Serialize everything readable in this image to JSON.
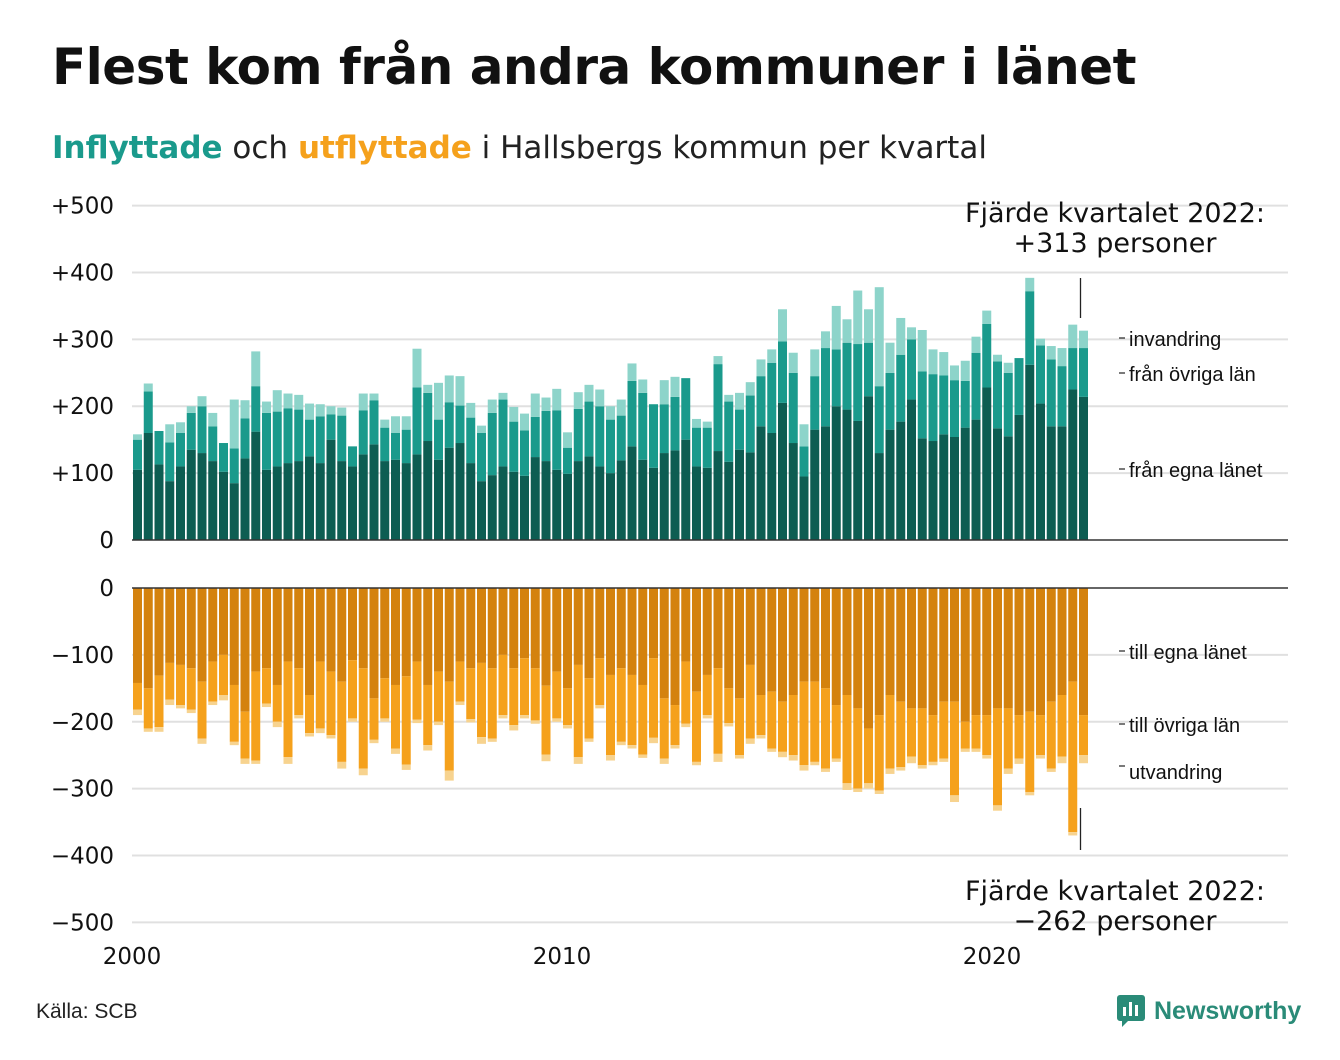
{
  "header": {
    "title": "Flest kom från andra kommuner i länet",
    "subtitle_in": "Inflyttade",
    "subtitle_mid": " och ",
    "subtitle_out": "utflyttade",
    "subtitle_rest": " i Hallsbergs kommun per kvartal"
  },
  "footer": {
    "source": "Källa: SCB",
    "brand": "Newsworthy"
  },
  "colors": {
    "in_own": "#0d5d52",
    "in_other": "#1a9a8c",
    "in_immigration": "#8dd4ca",
    "out_own": "#d4820e",
    "out_other": "#f5a11c",
    "out_emigration": "#f7d38f",
    "grid": "#e0e0e0",
    "axis": "#333333"
  },
  "chart_data": {
    "type": "bar",
    "stacked": true,
    "start_year": 2000,
    "period": "quarter",
    "x_ticks": [
      "2000",
      "2010",
      "2020"
    ],
    "upper": {
      "ylim": [
        0,
        500
      ],
      "y_ticks": [
        "0",
        "+100",
        "+200",
        "+300",
        "+400",
        "+500"
      ],
      "series": [
        {
          "name": "från egna länet",
          "values": [
            105,
            160,
            113,
            88,
            110,
            135,
            130,
            118,
            102,
            85,
            122,
            162,
            105,
            110,
            115,
            118,
            125,
            115,
            150,
            118,
            110,
            128,
            143,
            118,
            120,
            115,
            128,
            148,
            120,
            138,
            145,
            115,
            88,
            97,
            110,
            102,
            96,
            124,
            118,
            105,
            99,
            118,
            125,
            110,
            100,
            119,
            140,
            120,
            108,
            130,
            134,
            150,
            110,
            108,
            133,
            117,
            135,
            131,
            170,
            160,
            205,
            145,
            95,
            165,
            170,
            200,
            195,
            178,
            215,
            130,
            165,
            177,
            210,
            152,
            148,
            158,
            154,
            168,
            180,
            228,
            167,
            155,
            187,
            262,
            204,
            170,
            170,
            225,
            214
          ]
        },
        {
          "name": "från övriga län",
          "values": [
            45,
            62,
            50,
            58,
            50,
            55,
            70,
            52,
            43,
            52,
            60,
            68,
            85,
            82,
            82,
            77,
            55,
            70,
            38,
            68,
            30,
            66,
            66,
            50,
            40,
            50,
            100,
            72,
            60,
            68,
            56,
            68,
            72,
            93,
            100,
            75,
            68,
            60,
            75,
            89,
            39,
            78,
            82,
            90,
            80,
            67,
            98,
            100,
            95,
            73,
            80,
            92,
            58,
            60,
            130,
            90,
            60,
            85,
            75,
            105,
            92,
            105,
            45,
            80,
            117,
            85,
            100,
            115,
            80,
            100,
            85,
            100,
            90,
            100,
            100,
            88,
            85,
            70,
            100,
            95,
            100,
            95,
            85,
            110,
            87,
            100,
            90,
            62,
            73
          ]
        },
        {
          "name": "invandring",
          "values": [
            8,
            12,
            0,
            27,
            16,
            10,
            15,
            20,
            0,
            73,
            27,
            52,
            17,
            32,
            22,
            22,
            24,
            18,
            12,
            12,
            0,
            25,
            10,
            12,
            25,
            20,
            58,
            12,
            55,
            40,
            44,
            22,
            11,
            20,
            10,
            22,
            25,
            35,
            20,
            32,
            23,
            25,
            25,
            25,
            20,
            24,
            26,
            20,
            0,
            36,
            30,
            0,
            13,
            9,
            12,
            10,
            25,
            20,
            25,
            20,
            48,
            30,
            33,
            40,
            25,
            65,
            35,
            80,
            50,
            148,
            45,
            55,
            18,
            62,
            37,
            35,
            22,
            30,
            24,
            20,
            10,
            15,
            0,
            20,
            10,
            20,
            27,
            35,
            26
          ]
        }
      ]
    },
    "lower": {
      "ylim": [
        -500,
        0
      ],
      "y_ticks": [
        "0",
        "−100",
        "−200",
        "−300",
        "−400",
        "−500"
      ],
      "series": [
        {
          "name": "till egna länet",
          "values": [
            -142,
            -150,
            -131,
            -112,
            -115,
            -120,
            -140,
            -110,
            -100,
            -145,
            -185,
            -125,
            -120,
            -145,
            -110,
            -120,
            -160,
            -110,
            -125,
            -140,
            -108,
            -120,
            -165,
            -135,
            -145,
            -132,
            -110,
            -145,
            -125,
            -140,
            -110,
            -120,
            -112,
            -120,
            -100,
            -120,
            -105,
            -120,
            -146,
            -125,
            -150,
            -115,
            -135,
            -105,
            -130,
            -120,
            -130,
            -145,
            -105,
            -165,
            -175,
            -110,
            -155,
            -130,
            -120,
            -150,
            -165,
            -115,
            -160,
            -155,
            -170,
            -160,
            -140,
            -140,
            -150,
            -175,
            -160,
            -180,
            -210,
            -190,
            -160,
            -170,
            -180,
            -180,
            -190,
            -170,
            -170,
            -200,
            -190,
            -190,
            -180,
            -180,
            -190,
            -185,
            -190,
            -170,
            -160,
            -140,
            -190
          ]
        },
        {
          "name": "till övriga län",
          "values": [
            -40,
            -60,
            -77,
            -55,
            -60,
            -62,
            -85,
            -60,
            -60,
            -85,
            -70,
            -133,
            -53,
            -55,
            -143,
            -70,
            -57,
            -100,
            -95,
            -120,
            -87,
            -150,
            -62,
            -60,
            -95,
            -132,
            -87,
            -90,
            -75,
            -133,
            -60,
            -76,
            -111,
            -105,
            -90,
            -85,
            -85,
            -78,
            -103,
            -70,
            -55,
            -138,
            -90,
            -70,
            -120,
            -110,
            -105,
            -104,
            -119,
            -90,
            -60,
            -93,
            -105,
            -60,
            -128,
            -52,
            -85,
            -110,
            -60,
            -85,
            -75,
            -90,
            -125,
            -120,
            -120,
            -80,
            -132,
            -120,
            -82,
            -113,
            -110,
            -98,
            -72,
            -85,
            -70,
            -85,
            -140,
            -40,
            -50,
            -60,
            -145,
            -90,
            -65,
            -120,
            -60,
            -100,
            -92,
            -225,
            -60
          ]
        },
        {
          "name": "utvandring",
          "values": [
            -8,
            -5,
            -7,
            -8,
            -5,
            -5,
            -8,
            -5,
            -8,
            -5,
            -8,
            -5,
            -5,
            -8,
            -10,
            -5,
            -5,
            -7,
            -5,
            -10,
            -5,
            -10,
            -5,
            -5,
            -8,
            -8,
            -5,
            -8,
            -5,
            -15,
            -5,
            -5,
            -10,
            -5,
            -5,
            -8,
            -5,
            -5,
            -10,
            -5,
            -5,
            -10,
            -5,
            -5,
            -8,
            -5,
            -5,
            -5,
            -8,
            -8,
            -5,
            -5,
            -5,
            -5,
            -12,
            -5,
            -5,
            -8,
            -5,
            -5,
            -8,
            -8,
            -8,
            -5,
            -5,
            -5,
            -10,
            -5,
            -8,
            -5,
            -8,
            -5,
            -10,
            -5,
            -5,
            -5,
            -10,
            -5,
            -5,
            -5,
            -8,
            -8,
            -8,
            -5,
            -5,
            -5,
            -10,
            -5,
            -12
          ]
        }
      ]
    },
    "annotations": {
      "upper_note_line1": "Fjärde kvartalet 2022:",
      "upper_note_line2": "+313 personer",
      "lower_note_line1": "Fjärde kvartalet 2022:",
      "lower_note_line2": "−262 personer"
    },
    "legend_labels": {
      "in_immigration": "invandring",
      "in_other": "från övriga län",
      "in_own": "från egna länet",
      "out_own": "till egna länet",
      "out_other": "till övriga län",
      "out_emigration": "utvandring"
    }
  }
}
